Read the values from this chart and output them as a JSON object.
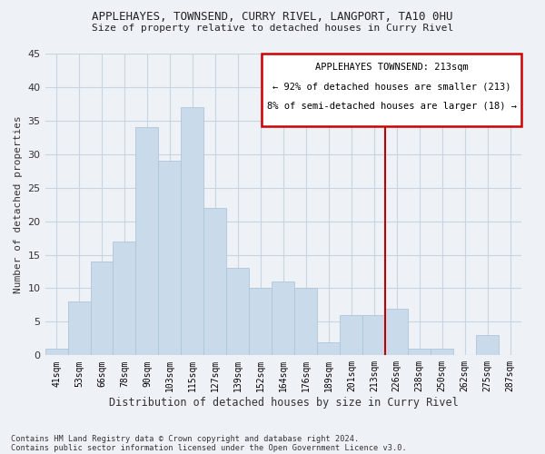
{
  "title_line1": "APPLEHAYES, TOWNSEND, CURRY RIVEL, LANGPORT, TA10 0HU",
  "title_line2": "Size of property relative to detached houses in Curry Rivel",
  "xlabel": "Distribution of detached houses by size in Curry Rivel",
  "ylabel": "Number of detached properties",
  "footer_line1": "Contains HM Land Registry data © Crown copyright and database right 2024.",
  "footer_line2": "Contains public sector information licensed under the Open Government Licence v3.0.",
  "categories": [
    "41sqm",
    "53sqm",
    "66sqm",
    "78sqm",
    "90sqm",
    "103sqm",
    "115sqm",
    "127sqm",
    "139sqm",
    "152sqm",
    "164sqm",
    "176sqm",
    "189sqm",
    "201sqm",
    "213sqm",
    "226sqm",
    "238sqm",
    "250sqm",
    "262sqm",
    "275sqm",
    "287sqm"
  ],
  "values": [
    1,
    8,
    14,
    17,
    34,
    29,
    37,
    22,
    13,
    10,
    11,
    10,
    2,
    6,
    6,
    7,
    1,
    1,
    0,
    3,
    0
  ],
  "bar_color": "#c9daea",
  "bar_edge_color": "#aec6d8",
  "vline_color": "#bb0000",
  "annotation_title": "APPLEHAYES TOWNSEND: 213sqm",
  "annotation_line1": "← 92% of detached houses are smaller (213)",
  "annotation_line2": "8% of semi-detached houses are larger (18) →",
  "annotation_border_color": "#cc0000",
  "ylim": [
    0,
    45
  ],
  "yticks": [
    0,
    5,
    10,
    15,
    20,
    25,
    30,
    35,
    40,
    45
  ],
  "grid_color": "#c8d4e0",
  "background_color": "#eef2f7"
}
